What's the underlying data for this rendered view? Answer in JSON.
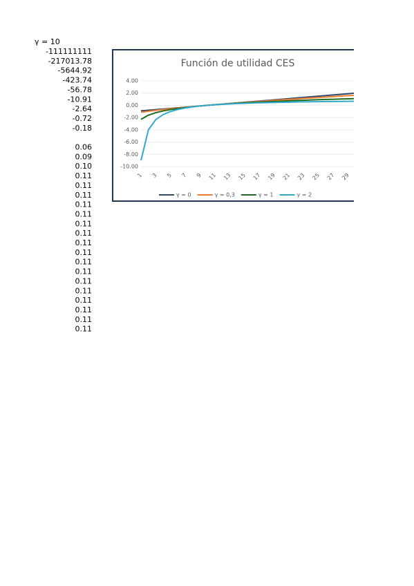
{
  "column": {
    "header": "γ = 10",
    "values": [
      "-111111111",
      "-217013.78",
      "-5644.92",
      "-423.74",
      "-56.78",
      "-10.91",
      "-2.64",
      "-0.72",
      "-0.18",
      null,
      "0.06",
      "0.09",
      "0.10",
      "0.11",
      "0.11",
      "0.11",
      "0.11",
      "0.11",
      "0.11",
      "0.11",
      "0.11",
      "0.11",
      "0.11",
      "0.11",
      "0.11",
      "0.11",
      "0.11",
      "0.11",
      "0.11",
      "0.11"
    ]
  },
  "chart_data": {
    "type": "line",
    "title": "Función de utilidad CES",
    "categories": [
      1,
      null,
      3,
      null,
      5,
      null,
      7,
      null,
      9,
      null,
      11,
      null,
      13,
      null,
      15,
      null,
      17,
      null,
      19,
      null,
      21,
      null,
      23,
      null,
      25,
      null,
      27,
      null,
      29,
      null
    ],
    "series": [
      {
        "name": "γ = 0",
        "color": "#2e4a6b",
        "values": [
          -0.9,
          -0.8,
          -0.7,
          -0.6,
          -0.5,
          -0.4,
          -0.3,
          -0.2,
          -0.1,
          0,
          0.1,
          0.2,
          0.3,
          0.4,
          0.5,
          0.6,
          0.7,
          0.8,
          0.9,
          1.0,
          1.1,
          1.2,
          1.3,
          1.4,
          1.5,
          1.6,
          1.7,
          1.8,
          1.9,
          2.0
        ]
      },
      {
        "name": "γ = 0,3",
        "color": "#ed7d31",
        "values": [
          -1.14,
          -0.97,
          -0.81,
          -0.68,
          -0.55,
          -0.43,
          -0.32,
          -0.21,
          -0.1,
          0,
          0.1,
          0.19,
          0.29,
          0.38,
          0.47,
          0.56,
          0.64,
          0.73,
          0.81,
          0.89,
          0.97,
          1.05,
          1.13,
          1.21,
          1.28,
          1.36,
          1.43,
          1.51,
          1.58,
          1.65
        ]
      },
      {
        "name": "γ = 1",
        "color": "#1e6b1e",
        "values": [
          -2.3,
          -1.61,
          -1.2,
          -0.92,
          -0.69,
          -0.51,
          -0.36,
          -0.22,
          -0.11,
          0,
          0.1,
          0.18,
          0.26,
          0.34,
          0.41,
          0.47,
          0.53,
          0.59,
          0.64,
          0.69,
          0.74,
          0.79,
          0.83,
          0.88,
          0.92,
          0.96,
          0.99,
          1.03,
          1.06,
          1.1
        ]
      },
      {
        "name": "γ = 2",
        "color": "#2ea9cc",
        "values": [
          -9,
          -4,
          -2.33,
          -1.5,
          -1,
          -0.67,
          -0.43,
          -0.25,
          -0.11,
          0,
          0.09,
          0.17,
          0.23,
          0.29,
          0.33,
          0.38,
          0.41,
          0.44,
          0.47,
          0.5,
          0.52,
          0.55,
          0.57,
          0.58,
          0.6,
          0.62,
          0.63,
          0.64,
          0.66,
          0.67
        ]
      }
    ],
    "ylim": [
      -10,
      4
    ],
    "yticks": [
      {
        "value": -10,
        "label": "-10.00"
      },
      {
        "value": -8,
        "label": "-8.00"
      },
      {
        "value": -6,
        "label": "-6.00"
      },
      {
        "value": -4,
        "label": "-4.00"
      },
      {
        "value": -2,
        "label": "-2.00"
      },
      {
        "value": 0,
        "label": "0.00"
      },
      {
        "value": 2,
        "label": "2.00"
      },
      {
        "value": 4,
        "label": "4.00"
      }
    ],
    "grid": true,
    "legend": "bottom"
  }
}
